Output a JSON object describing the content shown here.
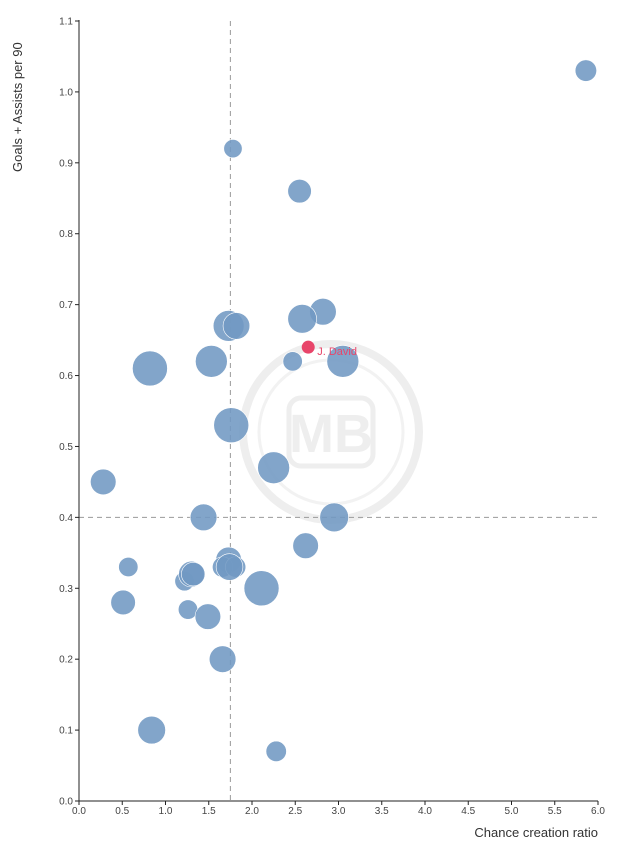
{
  "chart_data": {
    "type": "scatter",
    "xlabel": "Chance creation ratio",
    "ylabel": "Goals + Assists per 90",
    "xlim": [
      0,
      6
    ],
    "ylim": [
      0,
      1.1
    ],
    "x_ticks": [
      "0.0",
      "0.5",
      "1.0",
      "1.5",
      "2.0",
      "2.5",
      "3.0",
      "3.5",
      "4.0",
      "4.5",
      "5.0",
      "5.5",
      "6.0"
    ],
    "y_ticks": [
      "0.0",
      "0.1",
      "0.2",
      "0.3",
      "0.4",
      "0.5",
      "0.6",
      "0.7",
      "0.8",
      "0.9",
      "1.0",
      "1.1"
    ],
    "grid": false,
    "reference_lines": {
      "x": 1.75,
      "y": 0.4
    },
    "bubble_color": "#7199c3",
    "highlight_color": "#e8456a",
    "watermark": "MB",
    "points": [
      {
        "x": 5.86,
        "y": 1.03,
        "size": 1.3
      },
      {
        "x": 1.78,
        "y": 0.92,
        "size": 1.0
      },
      {
        "x": 2.55,
        "y": 0.86,
        "size": 1.5
      },
      {
        "x": 2.82,
        "y": 0.69,
        "size": 1.8
      },
      {
        "x": 2.58,
        "y": 0.68,
        "size": 2.0
      },
      {
        "x": 1.73,
        "y": 0.67,
        "size": 2.2
      },
      {
        "x": 1.82,
        "y": 0.67,
        "size": 1.8
      },
      {
        "x": 0.82,
        "y": 0.61,
        "size": 2.6
      },
      {
        "x": 1.53,
        "y": 0.62,
        "size": 2.3
      },
      {
        "x": 2.47,
        "y": 0.62,
        "size": 1.1
      },
      {
        "x": 3.05,
        "y": 0.62,
        "size": 2.3
      },
      {
        "x": 1.76,
        "y": 0.53,
        "size": 2.6
      },
      {
        "x": 2.25,
        "y": 0.47,
        "size": 2.3
      },
      {
        "x": 0.28,
        "y": 0.45,
        "size": 1.7
      },
      {
        "x": 1.44,
        "y": 0.4,
        "size": 1.8
      },
      {
        "x": 2.95,
        "y": 0.4,
        "size": 2.0
      },
      {
        "x": 2.62,
        "y": 0.36,
        "size": 1.7
      },
      {
        "x": 0.57,
        "y": 0.33,
        "size": 1.1
      },
      {
        "x": 1.73,
        "y": 0.34,
        "size": 1.7
      },
      {
        "x": 1.66,
        "y": 0.33,
        "size": 1.2
      },
      {
        "x": 1.81,
        "y": 0.33,
        "size": 1.2
      },
      {
        "x": 1.74,
        "y": 0.33,
        "size": 1.8
      },
      {
        "x": 2.11,
        "y": 0.3,
        "size": 2.6
      },
      {
        "x": 1.22,
        "y": 0.31,
        "size": 1.1
      },
      {
        "x": 1.3,
        "y": 0.32,
        "size": 1.7
      },
      {
        "x": 1.32,
        "y": 0.32,
        "size": 1.5
      },
      {
        "x": 0.51,
        "y": 0.28,
        "size": 1.6
      },
      {
        "x": 1.26,
        "y": 0.27,
        "size": 1.1
      },
      {
        "x": 1.49,
        "y": 0.26,
        "size": 1.7
      },
      {
        "x": 1.66,
        "y": 0.2,
        "size": 1.8
      },
      {
        "x": 0.84,
        "y": 0.1,
        "size": 1.9
      },
      {
        "x": 2.28,
        "y": 0.07,
        "size": 1.2
      }
    ],
    "highlight": {
      "label": "J. David",
      "x": 2.65,
      "y": 0.64,
      "size": 1.1
    }
  }
}
